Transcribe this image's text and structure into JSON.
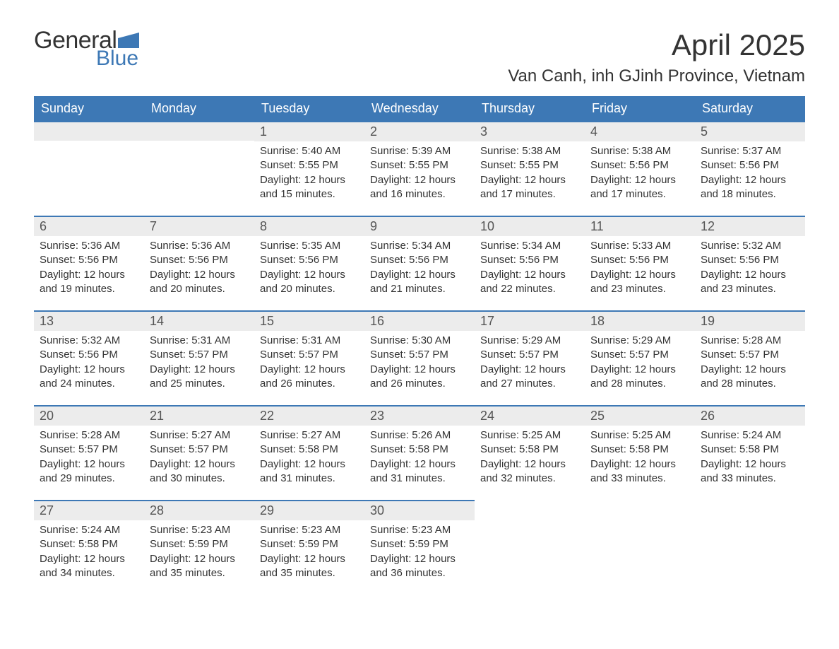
{
  "logo": {
    "word1": "General",
    "word2": "Blue",
    "flag_color": "#3d78b5"
  },
  "title": "April 2025",
  "location": "Van Canh, inh GJinh Province, Vietnam",
  "colors": {
    "header_bg": "#3d78b5",
    "header_text": "#ffffff",
    "daynum_bg": "#ececec",
    "daynum_border": "#3d78b5",
    "body_text": "#333333"
  },
  "fonts": {
    "title_pt": 42,
    "location_pt": 24,
    "th_pt": 18,
    "daynum_pt": 18,
    "body_pt": 15
  },
  "weekdays": [
    "Sunday",
    "Monday",
    "Tuesday",
    "Wednesday",
    "Thursday",
    "Friday",
    "Saturday"
  ],
  "weeks": [
    [
      null,
      null,
      {
        "n": "1",
        "sr": "Sunrise: 5:40 AM",
        "ss": "Sunset: 5:55 PM",
        "d1": "Daylight: 12 hours",
        "d2": "and 15 minutes."
      },
      {
        "n": "2",
        "sr": "Sunrise: 5:39 AM",
        "ss": "Sunset: 5:55 PM",
        "d1": "Daylight: 12 hours",
        "d2": "and 16 minutes."
      },
      {
        "n": "3",
        "sr": "Sunrise: 5:38 AM",
        "ss": "Sunset: 5:55 PM",
        "d1": "Daylight: 12 hours",
        "d2": "and 17 minutes."
      },
      {
        "n": "4",
        "sr": "Sunrise: 5:38 AM",
        "ss": "Sunset: 5:56 PM",
        "d1": "Daylight: 12 hours",
        "d2": "and 17 minutes."
      },
      {
        "n": "5",
        "sr": "Sunrise: 5:37 AM",
        "ss": "Sunset: 5:56 PM",
        "d1": "Daylight: 12 hours",
        "d2": "and 18 minutes."
      }
    ],
    [
      {
        "n": "6",
        "sr": "Sunrise: 5:36 AM",
        "ss": "Sunset: 5:56 PM",
        "d1": "Daylight: 12 hours",
        "d2": "and 19 minutes."
      },
      {
        "n": "7",
        "sr": "Sunrise: 5:36 AM",
        "ss": "Sunset: 5:56 PM",
        "d1": "Daylight: 12 hours",
        "d2": "and 20 minutes."
      },
      {
        "n": "8",
        "sr": "Sunrise: 5:35 AM",
        "ss": "Sunset: 5:56 PM",
        "d1": "Daylight: 12 hours",
        "d2": "and 20 minutes."
      },
      {
        "n": "9",
        "sr": "Sunrise: 5:34 AM",
        "ss": "Sunset: 5:56 PM",
        "d1": "Daylight: 12 hours",
        "d2": "and 21 minutes."
      },
      {
        "n": "10",
        "sr": "Sunrise: 5:34 AM",
        "ss": "Sunset: 5:56 PM",
        "d1": "Daylight: 12 hours",
        "d2": "and 22 minutes."
      },
      {
        "n": "11",
        "sr": "Sunrise: 5:33 AM",
        "ss": "Sunset: 5:56 PM",
        "d1": "Daylight: 12 hours",
        "d2": "and 23 minutes."
      },
      {
        "n": "12",
        "sr": "Sunrise: 5:32 AM",
        "ss": "Sunset: 5:56 PM",
        "d1": "Daylight: 12 hours",
        "d2": "and 23 minutes."
      }
    ],
    [
      {
        "n": "13",
        "sr": "Sunrise: 5:32 AM",
        "ss": "Sunset: 5:56 PM",
        "d1": "Daylight: 12 hours",
        "d2": "and 24 minutes."
      },
      {
        "n": "14",
        "sr": "Sunrise: 5:31 AM",
        "ss": "Sunset: 5:57 PM",
        "d1": "Daylight: 12 hours",
        "d2": "and 25 minutes."
      },
      {
        "n": "15",
        "sr": "Sunrise: 5:31 AM",
        "ss": "Sunset: 5:57 PM",
        "d1": "Daylight: 12 hours",
        "d2": "and 26 minutes."
      },
      {
        "n": "16",
        "sr": "Sunrise: 5:30 AM",
        "ss": "Sunset: 5:57 PM",
        "d1": "Daylight: 12 hours",
        "d2": "and 26 minutes."
      },
      {
        "n": "17",
        "sr": "Sunrise: 5:29 AM",
        "ss": "Sunset: 5:57 PM",
        "d1": "Daylight: 12 hours",
        "d2": "and 27 minutes."
      },
      {
        "n": "18",
        "sr": "Sunrise: 5:29 AM",
        "ss": "Sunset: 5:57 PM",
        "d1": "Daylight: 12 hours",
        "d2": "and 28 minutes."
      },
      {
        "n": "19",
        "sr": "Sunrise: 5:28 AM",
        "ss": "Sunset: 5:57 PM",
        "d1": "Daylight: 12 hours",
        "d2": "and 28 minutes."
      }
    ],
    [
      {
        "n": "20",
        "sr": "Sunrise: 5:28 AM",
        "ss": "Sunset: 5:57 PM",
        "d1": "Daylight: 12 hours",
        "d2": "and 29 minutes."
      },
      {
        "n": "21",
        "sr": "Sunrise: 5:27 AM",
        "ss": "Sunset: 5:57 PM",
        "d1": "Daylight: 12 hours",
        "d2": "and 30 minutes."
      },
      {
        "n": "22",
        "sr": "Sunrise: 5:27 AM",
        "ss": "Sunset: 5:58 PM",
        "d1": "Daylight: 12 hours",
        "d2": "and 31 minutes."
      },
      {
        "n": "23",
        "sr": "Sunrise: 5:26 AM",
        "ss": "Sunset: 5:58 PM",
        "d1": "Daylight: 12 hours",
        "d2": "and 31 minutes."
      },
      {
        "n": "24",
        "sr": "Sunrise: 5:25 AM",
        "ss": "Sunset: 5:58 PM",
        "d1": "Daylight: 12 hours",
        "d2": "and 32 minutes."
      },
      {
        "n": "25",
        "sr": "Sunrise: 5:25 AM",
        "ss": "Sunset: 5:58 PM",
        "d1": "Daylight: 12 hours",
        "d2": "and 33 minutes."
      },
      {
        "n": "26",
        "sr": "Sunrise: 5:24 AM",
        "ss": "Sunset: 5:58 PM",
        "d1": "Daylight: 12 hours",
        "d2": "and 33 minutes."
      }
    ],
    [
      {
        "n": "27",
        "sr": "Sunrise: 5:24 AM",
        "ss": "Sunset: 5:58 PM",
        "d1": "Daylight: 12 hours",
        "d2": "and 34 minutes."
      },
      {
        "n": "28",
        "sr": "Sunrise: 5:23 AM",
        "ss": "Sunset: 5:59 PM",
        "d1": "Daylight: 12 hours",
        "d2": "and 35 minutes."
      },
      {
        "n": "29",
        "sr": "Sunrise: 5:23 AM",
        "ss": "Sunset: 5:59 PM",
        "d1": "Daylight: 12 hours",
        "d2": "and 35 minutes."
      },
      {
        "n": "30",
        "sr": "Sunrise: 5:23 AM",
        "ss": "Sunset: 5:59 PM",
        "d1": "Daylight: 12 hours",
        "d2": "and 36 minutes."
      },
      null,
      null,
      null
    ]
  ]
}
